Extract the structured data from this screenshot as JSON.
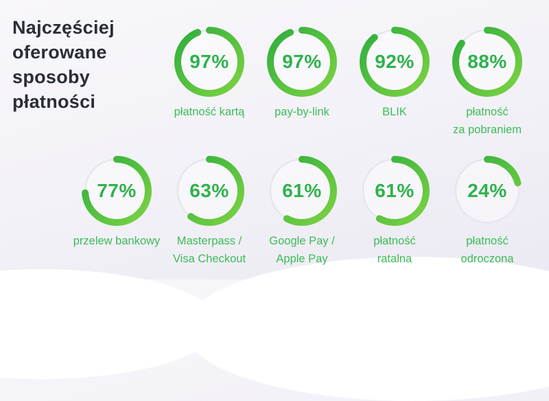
{
  "title": {
    "text": "Najczęściej oferowane sposoby płatności",
    "lines": [
      "Najczęściej",
      "oferowane",
      "sposoby",
      "płatności"
    ]
  },
  "chart_data": {
    "type": "pie",
    "variant": "progress-donut-grid",
    "title": "Najczęściej oferowane sposoby płatności",
    "unit": "%",
    "legend": "none",
    "grid": "off",
    "categories": [
      "płatność kartą",
      "pay-by-link",
      "BLIK",
      "płatność za pobraniem",
      "przelew bankowy",
      "Masterpass / Visa Checkout",
      "Google Pay / Apple Pay",
      "płatność ratalna",
      "płatność odroczona"
    ],
    "values": [
      97,
      97,
      92,
      88,
      77,
      63,
      61,
      61,
      24
    ],
    "items": [
      {
        "value": 97,
        "display": "97%",
        "label": "płatność kartą",
        "label_lines": [
          "płatność kartą"
        ]
      },
      {
        "value": 97,
        "display": "97%",
        "label": "pay-by-link",
        "label_lines": [
          "pay-by-link"
        ]
      },
      {
        "value": 92,
        "display": "92%",
        "label": "BLIK",
        "label_lines": [
          "BLIK"
        ]
      },
      {
        "value": 88,
        "display": "88%",
        "label": "płatność za pobraniem",
        "label_lines": [
          "płatność",
          "za pobraniem"
        ]
      },
      {
        "value": 77,
        "display": "77%",
        "label": "przelew bankowy",
        "label_lines": [
          "przelew bankowy"
        ]
      },
      {
        "value": 63,
        "display": "63%",
        "label": "Masterpass / Visa Checkout",
        "label_lines": [
          "Masterpass /",
          "Visa Checkout"
        ]
      },
      {
        "value": 61,
        "display": "61%",
        "label": "Google Pay / Apple Pay",
        "label_lines": [
          "Google Pay /",
          "Apple Pay"
        ]
      },
      {
        "value": 61,
        "display": "61%",
        "label": "płatność ratalna",
        "label_lines": [
          "płatność",
          "ratalna"
        ]
      },
      {
        "value": 24,
        "display": "24%",
        "label": "płatność odroczona",
        "label_lines": [
          "płatność",
          "odroczona"
        ]
      }
    ]
  },
  "style": {
    "ring_gradient_light": "#7cd342",
    "ring_gradient_dark": "#2fae3e",
    "percent_color": "#2fb14c",
    "label_color": "#3dbb58",
    "title_color": "#2b2e34",
    "track_color": "#e6e6ee",
    "inner_disc_color": "rgba(255,255,255,0.45)",
    "background_top": "#f8f7fb",
    "background_bottom": "#ebe9f2",
    "wave_color": "#ffffff"
  }
}
